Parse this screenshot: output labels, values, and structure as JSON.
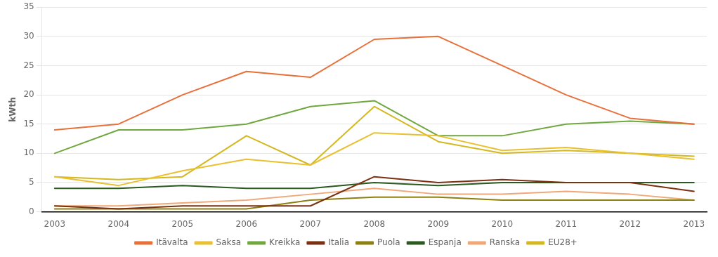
{
  "chart_data": {
    "type": "line",
    "ylabel": "kWth",
    "x": [
      2003,
      2004,
      2005,
      2006,
      2007,
      2008,
      2009,
      2010,
      2011,
      2012,
      2013
    ],
    "series": [
      {
        "name": "Itävalta",
        "color": "#E8703A",
        "values": [
          14,
          15,
          20,
          24,
          23,
          29.5,
          30,
          25,
          20,
          16,
          15
        ]
      },
      {
        "name": "Saksa",
        "color": "#E8C030",
        "values": [
          6,
          4.5,
          7,
          9,
          8,
          13.5,
          13,
          10.5,
          11,
          10,
          9
        ]
      },
      {
        "name": "Kreikka",
        "color": "#70A840",
        "values": [
          10,
          14,
          14,
          15,
          18,
          19,
          13,
          13,
          15,
          15.5,
          15
        ]
      },
      {
        "name": "Italia",
        "color": "#7B3010",
        "values": [
          1,
          0.5,
          1,
          1,
          1,
          6,
          5,
          5.5,
          5,
          5,
          3.5
        ]
      },
      {
        "name": "Puola",
        "color": "#8B8010",
        "values": [
          0.5,
          0.5,
          0.5,
          0.5,
          2,
          2.5,
          2.5,
          2,
          2,
          2,
          2
        ]
      },
      {
        "name": "Espanja",
        "color": "#2A5A20",
        "values": [
          4,
          4,
          4.5,
          4,
          4,
          5,
          4.5,
          5,
          5,
          5,
          5
        ]
      },
      {
        "name": "Ranska",
        "color": "#F0A878",
        "values": [
          1,
          1,
          1.5,
          2,
          3,
          4,
          3,
          3,
          3.5,
          3,
          2
        ]
      },
      {
        "name": "EU28+",
        "color": "#D4B820",
        "values": [
          6,
          5.5,
          6,
          13,
          8,
          18,
          12,
          10,
          10.5,
          10,
          9.5
        ]
      }
    ],
    "xlim": [
      2002.8,
      2013.2
    ],
    "xticks": [
      2003,
      2004,
      2005,
      2006,
      2007,
      2008,
      2009,
      2010,
      2011,
      2012,
      2013
    ],
    "ylim": [
      0,
      35
    ],
    "yticks": [
      0,
      5,
      10,
      15,
      20,
      25,
      30,
      35
    ],
    "grid": "y",
    "legend": "bottom"
  }
}
